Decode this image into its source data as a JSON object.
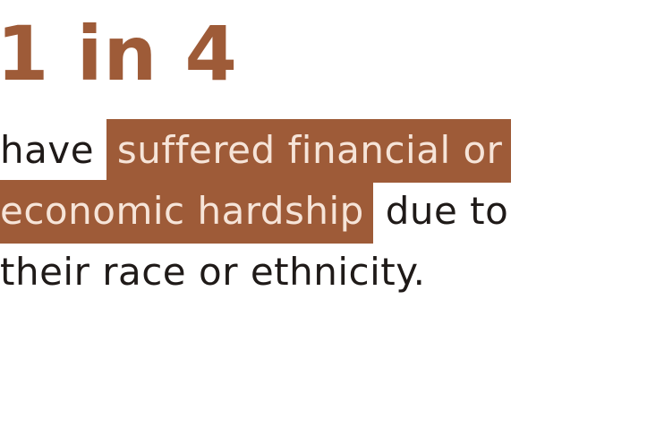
{
  "stat": {
    "value": "1 in 4",
    "color": "#9e5b38"
  },
  "statement": {
    "line1_plain": "have ",
    "line1_highlight": "suffered financial or",
    "line2_highlight": "economic hardship",
    "line2_plain": " due to",
    "line3_plain": "their race or ethnicity.",
    "highlight_color": "#9e5b38",
    "highlight_text_color": "#f6e4d8",
    "text_color": "#1f1a18"
  }
}
